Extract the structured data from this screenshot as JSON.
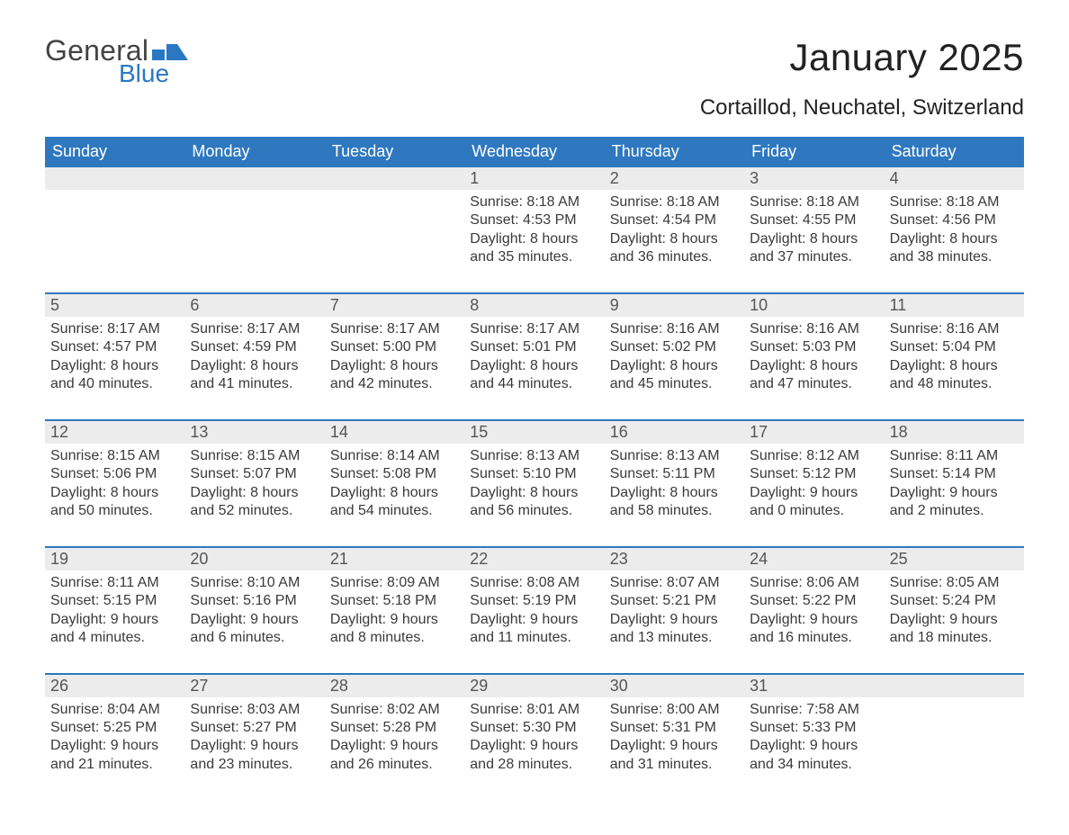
{
  "logo": {
    "word1": "General",
    "word2": "Blue"
  },
  "title": "January 2025",
  "subtitle": "Cortaillod, Neuchatel, Switzerland",
  "colors": {
    "header_blue": "#2f78bf",
    "row_band": "#ececec",
    "text": "#3a3a3a",
    "logo_blue": "#2a78c2"
  },
  "calendar": {
    "day_headers": [
      "Sunday",
      "Monday",
      "Tuesday",
      "Wednesday",
      "Thursday",
      "Friday",
      "Saturday"
    ],
    "weeks": [
      [
        null,
        null,
        null,
        {
          "n": "1",
          "sunrise": "Sunrise: 8:18 AM",
          "sunset": "Sunset: 4:53 PM",
          "daylight": "Daylight: 8 hours and 35 minutes."
        },
        {
          "n": "2",
          "sunrise": "Sunrise: 8:18 AM",
          "sunset": "Sunset: 4:54 PM",
          "daylight": "Daylight: 8 hours and 36 minutes."
        },
        {
          "n": "3",
          "sunrise": "Sunrise: 8:18 AM",
          "sunset": "Sunset: 4:55 PM",
          "daylight": "Daylight: 8 hours and 37 minutes."
        },
        {
          "n": "4",
          "sunrise": "Sunrise: 8:18 AM",
          "sunset": "Sunset: 4:56 PM",
          "daylight": "Daylight: 8 hours and 38 minutes."
        }
      ],
      [
        {
          "n": "5",
          "sunrise": "Sunrise: 8:17 AM",
          "sunset": "Sunset: 4:57 PM",
          "daylight": "Daylight: 8 hours and 40 minutes."
        },
        {
          "n": "6",
          "sunrise": "Sunrise: 8:17 AM",
          "sunset": "Sunset: 4:59 PM",
          "daylight": "Daylight: 8 hours and 41 minutes."
        },
        {
          "n": "7",
          "sunrise": "Sunrise: 8:17 AM",
          "sunset": "Sunset: 5:00 PM",
          "daylight": "Daylight: 8 hours and 42 minutes."
        },
        {
          "n": "8",
          "sunrise": "Sunrise: 8:17 AM",
          "sunset": "Sunset: 5:01 PM",
          "daylight": "Daylight: 8 hours and 44 minutes."
        },
        {
          "n": "9",
          "sunrise": "Sunrise: 8:16 AM",
          "sunset": "Sunset: 5:02 PM",
          "daylight": "Daylight: 8 hours and 45 minutes."
        },
        {
          "n": "10",
          "sunrise": "Sunrise: 8:16 AM",
          "sunset": "Sunset: 5:03 PM",
          "daylight": "Daylight: 8 hours and 47 minutes."
        },
        {
          "n": "11",
          "sunrise": "Sunrise: 8:16 AM",
          "sunset": "Sunset: 5:04 PM",
          "daylight": "Daylight: 8 hours and 48 minutes."
        }
      ],
      [
        {
          "n": "12",
          "sunrise": "Sunrise: 8:15 AM",
          "sunset": "Sunset: 5:06 PM",
          "daylight": "Daylight: 8 hours and 50 minutes."
        },
        {
          "n": "13",
          "sunrise": "Sunrise: 8:15 AM",
          "sunset": "Sunset: 5:07 PM",
          "daylight": "Daylight: 8 hours and 52 minutes."
        },
        {
          "n": "14",
          "sunrise": "Sunrise: 8:14 AM",
          "sunset": "Sunset: 5:08 PM",
          "daylight": "Daylight: 8 hours and 54 minutes."
        },
        {
          "n": "15",
          "sunrise": "Sunrise: 8:13 AM",
          "sunset": "Sunset: 5:10 PM",
          "daylight": "Daylight: 8 hours and 56 minutes."
        },
        {
          "n": "16",
          "sunrise": "Sunrise: 8:13 AM",
          "sunset": "Sunset: 5:11 PM",
          "daylight": "Daylight: 8 hours and 58 minutes."
        },
        {
          "n": "17",
          "sunrise": "Sunrise: 8:12 AM",
          "sunset": "Sunset: 5:12 PM",
          "daylight": "Daylight: 9 hours and 0 minutes."
        },
        {
          "n": "18",
          "sunrise": "Sunrise: 8:11 AM",
          "sunset": "Sunset: 5:14 PM",
          "daylight": "Daylight: 9 hours and 2 minutes."
        }
      ],
      [
        {
          "n": "19",
          "sunrise": "Sunrise: 8:11 AM",
          "sunset": "Sunset: 5:15 PM",
          "daylight": "Daylight: 9 hours and 4 minutes."
        },
        {
          "n": "20",
          "sunrise": "Sunrise: 8:10 AM",
          "sunset": "Sunset: 5:16 PM",
          "daylight": "Daylight: 9 hours and 6 minutes."
        },
        {
          "n": "21",
          "sunrise": "Sunrise: 8:09 AM",
          "sunset": "Sunset: 5:18 PM",
          "daylight": "Daylight: 9 hours and 8 minutes."
        },
        {
          "n": "22",
          "sunrise": "Sunrise: 8:08 AM",
          "sunset": "Sunset: 5:19 PM",
          "daylight": "Daylight: 9 hours and 11 minutes."
        },
        {
          "n": "23",
          "sunrise": "Sunrise: 8:07 AM",
          "sunset": "Sunset: 5:21 PM",
          "daylight": "Daylight: 9 hours and 13 minutes."
        },
        {
          "n": "24",
          "sunrise": "Sunrise: 8:06 AM",
          "sunset": "Sunset: 5:22 PM",
          "daylight": "Daylight: 9 hours and 16 minutes."
        },
        {
          "n": "25",
          "sunrise": "Sunrise: 8:05 AM",
          "sunset": "Sunset: 5:24 PM",
          "daylight": "Daylight: 9 hours and 18 minutes."
        }
      ],
      [
        {
          "n": "26",
          "sunrise": "Sunrise: 8:04 AM",
          "sunset": "Sunset: 5:25 PM",
          "daylight": "Daylight: 9 hours and 21 minutes."
        },
        {
          "n": "27",
          "sunrise": "Sunrise: 8:03 AM",
          "sunset": "Sunset: 5:27 PM",
          "daylight": "Daylight: 9 hours and 23 minutes."
        },
        {
          "n": "28",
          "sunrise": "Sunrise: 8:02 AM",
          "sunset": "Sunset: 5:28 PM",
          "daylight": "Daylight: 9 hours and 26 minutes."
        },
        {
          "n": "29",
          "sunrise": "Sunrise: 8:01 AM",
          "sunset": "Sunset: 5:30 PM",
          "daylight": "Daylight: 9 hours and 28 minutes."
        },
        {
          "n": "30",
          "sunrise": "Sunrise: 8:00 AM",
          "sunset": "Sunset: 5:31 PM",
          "daylight": "Daylight: 9 hours and 31 minutes."
        },
        {
          "n": "31",
          "sunrise": "Sunrise: 7:58 AM",
          "sunset": "Sunset: 5:33 PM",
          "daylight": "Daylight: 9 hours and 34 minutes."
        },
        null
      ]
    ]
  }
}
